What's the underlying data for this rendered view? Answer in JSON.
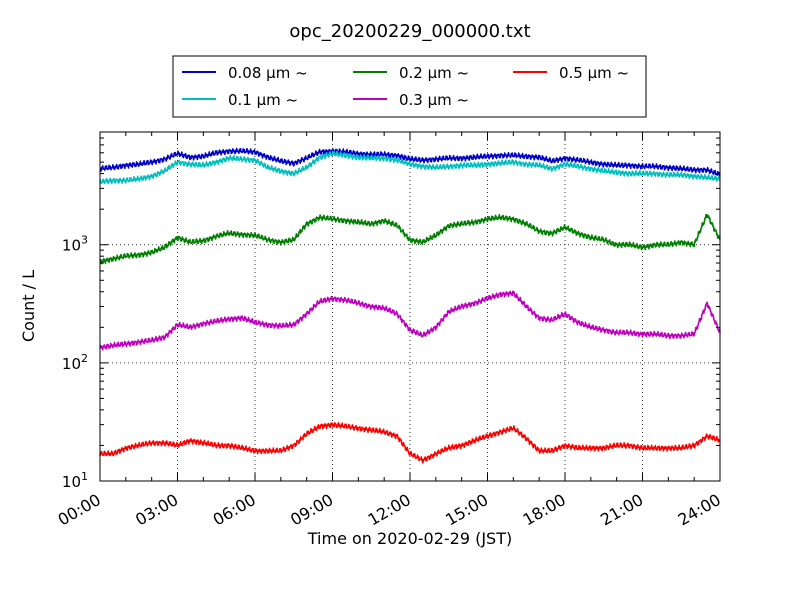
{
  "chart_data": {
    "type": "line",
    "title": "opc_20200229_000000.txt",
    "xlabel": "Time on 2020-02-29 (JST)",
    "ylabel": "Count / L",
    "y_scale": "log",
    "ylim": [
      10,
      9000
    ],
    "xlim": [
      "00:00",
      "24:00"
    ],
    "grid": "dotted",
    "legend_position": "top",
    "x_tick_labels": [
      "00:00",
      "03:00",
      "06:00",
      "09:00",
      "12:00",
      "15:00",
      "18:00",
      "21:00",
      "24:00"
    ],
    "y_tick_labels": [
      {
        "base": "10",
        "exp": "1",
        "value": 10
      },
      {
        "base": "10",
        "exp": "2",
        "value": 100
      },
      {
        "base": "10",
        "exp": "3",
        "value": 1000
      }
    ],
    "x": [
      "00:00",
      "00:30",
      "01:00",
      "01:30",
      "02:00",
      "02:30",
      "03:00",
      "03:30",
      "04:00",
      "04:30",
      "05:00",
      "05:30",
      "06:00",
      "06:30",
      "07:00",
      "07:30",
      "08:00",
      "08:30",
      "09:00",
      "09:30",
      "10:00",
      "10:30",
      "11:00",
      "11:30",
      "12:00",
      "12:30",
      "13:00",
      "13:30",
      "14:00",
      "14:30",
      "15:00",
      "15:30",
      "16:00",
      "16:30",
      "17:00",
      "17:30",
      "18:00",
      "18:30",
      "19:00",
      "19:30",
      "20:00",
      "20:30",
      "21:00",
      "21:30",
      "22:00",
      "22:30",
      "23:00",
      "23:30",
      "24:00"
    ],
    "series": [
      {
        "name": "0.08 μm ~",
        "color": "#0000cc",
        "values": [
          4400,
          4500,
          4700,
          4800,
          5000,
          5300,
          5900,
          5500,
          5600,
          6000,
          6200,
          6200,
          6100,
          5500,
          5100,
          4900,
          5400,
          6100,
          6200,
          6100,
          5900,
          5800,
          5800,
          5700,
          5300,
          5200,
          5300,
          5400,
          5400,
          5500,
          5600,
          5700,
          5700,
          5600,
          5500,
          5100,
          5400,
          5200,
          5000,
          4800,
          4700,
          4700,
          4600,
          4600,
          4500,
          4400,
          4300,
          4300,
          3900
        ]
      },
      {
        "name": "0.1 μm ~",
        "color": "#00bfbf",
        "values": [
          3400,
          3500,
          3500,
          3600,
          3800,
          4200,
          5000,
          4800,
          4700,
          5000,
          5400,
          5300,
          5200,
          4500,
          4200,
          4000,
          4500,
          5500,
          5900,
          5700,
          5500,
          5400,
          5400,
          5200,
          4800,
          4600,
          4500,
          4600,
          4700,
          4700,
          4800,
          4900,
          5000,
          4800,
          4700,
          4400,
          4800,
          4600,
          4400,
          4200,
          4100,
          4000,
          4000,
          4000,
          3900,
          3900,
          3800,
          3700,
          3600
        ]
      },
      {
        "name": "0.2 μm ~",
        "color": "#008000",
        "values": [
          720,
          760,
          800,
          820,
          860,
          950,
          1150,
          1050,
          1080,
          1180,
          1250,
          1220,
          1200,
          1100,
          1050,
          1100,
          1500,
          1700,
          1650,
          1600,
          1550,
          1500,
          1600,
          1450,
          1100,
          1050,
          1200,
          1450,
          1500,
          1550,
          1650,
          1700,
          1650,
          1500,
          1300,
          1250,
          1400,
          1250,
          1150,
          1100,
          1000,
          1000,
          950,
          1000,
          1000,
          1050,
          1000,
          1800,
          1100
        ]
      },
      {
        "name": "0.3 μm ~",
        "color": "#bf00bf",
        "values": [
          135,
          140,
          145,
          150,
          155,
          165,
          210,
          200,
          215,
          225,
          235,
          240,
          220,
          210,
          205,
          210,
          260,
          330,
          350,
          340,
          320,
          300,
          290,
          260,
          190,
          170,
          200,
          270,
          300,
          320,
          350,
          380,
          390,
          300,
          240,
          230,
          260,
          220,
          200,
          190,
          180,
          180,
          175,
          175,
          170,
          170,
          175,
          320,
          180
        ]
      },
      {
        "name": "0.5 μm ~",
        "color": "#ff0000",
        "values": [
          17,
          17,
          19,
          20,
          21,
          21,
          20,
          22,
          21,
          20,
          20,
          19,
          18,
          18,
          18,
          20,
          25,
          29,
          30,
          29,
          28,
          27,
          26,
          24,
          17,
          15,
          17,
          19,
          20,
          22,
          24,
          26,
          28,
          23,
          18,
          18,
          20,
          19,
          19,
          19,
          20,
          20,
          19,
          19,
          19,
          19,
          20,
          24,
          22
        ]
      }
    ]
  }
}
